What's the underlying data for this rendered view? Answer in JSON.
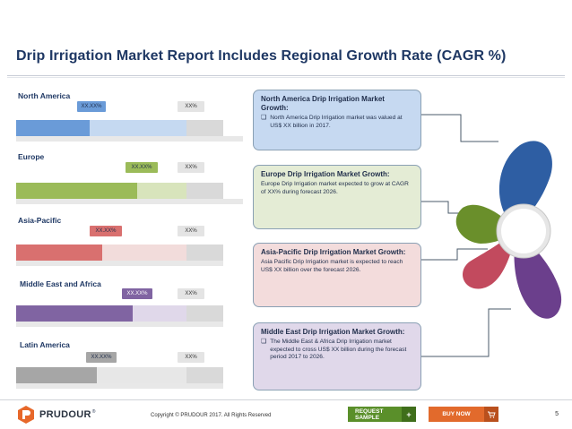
{
  "title": "Drip Irrigation  Market Report Includes Regional Growth Rate (CAGR %)",
  "colors": {
    "title": "#1f3864",
    "north_america": "#6a9bd8",
    "europe": "#9bbb59",
    "asia_pacific": "#d9706f",
    "middle_east_africa": "#8064a2",
    "latin_america": "#a6a6a6",
    "track": "#d9d9d9"
  },
  "regions": [
    {
      "label": "North America",
      "value_label": "XX.XX%",
      "pct_label": "XX%"
    },
    {
      "label": "Europe",
      "value_label": "XX.XX%",
      "pct_label": "XX%"
    },
    {
      "label": "Asia-Pacific",
      "value_label": "XX.XX%",
      "pct_label": "XX%"
    },
    {
      "label": "Middle East and Africa",
      "value_label": "XX.XX%",
      "pct_label": "XX%"
    },
    {
      "label": "Latin America",
      "value_label": "XX.XX%",
      "pct_label": "XX%"
    }
  ],
  "boxes": [
    {
      "title": "North America Drip Irrigation  Market Growth:",
      "bullet": "❏",
      "text": "North America Drip Irrigation  market was valued at US$ XX billion in 2017."
    },
    {
      "title": "Europe Drip Irrigation  Market Growth:",
      "text": "Europe Drip Irrigation  market expected to grow at CAGR of XX% during forecast 2026."
    },
    {
      "title": "Asia-Pacific Drip Irrigation  Market Growth:",
      "text": "Asia Pacific Drip Irrigation  market is expected to reach US$ XX billion over the forecast 2026."
    },
    {
      "title": "Middle East Drip Irrigation  Market Growth:",
      "bullet": "❏",
      "text": "The Middle East & Africa Drip Irrigation market expected to cross US$ XX billion during the forecast period 2017 to 2026."
    }
  ],
  "footer": {
    "logo_text": "PRUDOUR",
    "logo_reg": "®",
    "copyright": "Copyright © PRUDOUR 2017. All Rights Reserved",
    "request_sample": "REQUEST SAMPLE",
    "request_icon": "+",
    "buy_now": "BUY NOW",
    "buy_icon": "cart-icon",
    "page_number": "5"
  }
}
